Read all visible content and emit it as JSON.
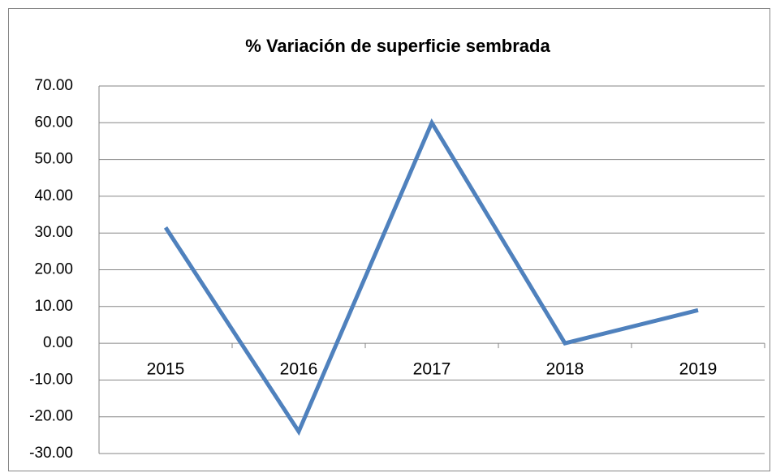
{
  "chart_data": {
    "type": "line",
    "title": "% Variación de superficie sembrada",
    "categories": [
      "2015",
      "2016",
      "2017",
      "2018",
      "2019"
    ],
    "series": [
      {
        "name": "% Variación",
        "color": "#4f81bd",
        "values": [
          31.5,
          -24,
          60,
          0,
          9
        ]
      }
    ],
    "ylim": [
      -30,
      70
    ],
    "yticks": [
      {
        "value": -30,
        "label": "-30.00"
      },
      {
        "value": -20,
        "label": "-20.00"
      },
      {
        "value": -10,
        "label": "-10.00"
      },
      {
        "value": 0,
        "label": "0.00"
      },
      {
        "value": 10,
        "label": "10.00"
      },
      {
        "value": 20,
        "label": "20.00"
      },
      {
        "value": 30,
        "label": "30.00"
      },
      {
        "value": 40,
        "label": "40.00"
      },
      {
        "value": 50,
        "label": "50.00"
      },
      {
        "value": 60,
        "label": "60.00"
      },
      {
        "value": 70,
        "label": "70.00"
      }
    ],
    "grid": true
  }
}
